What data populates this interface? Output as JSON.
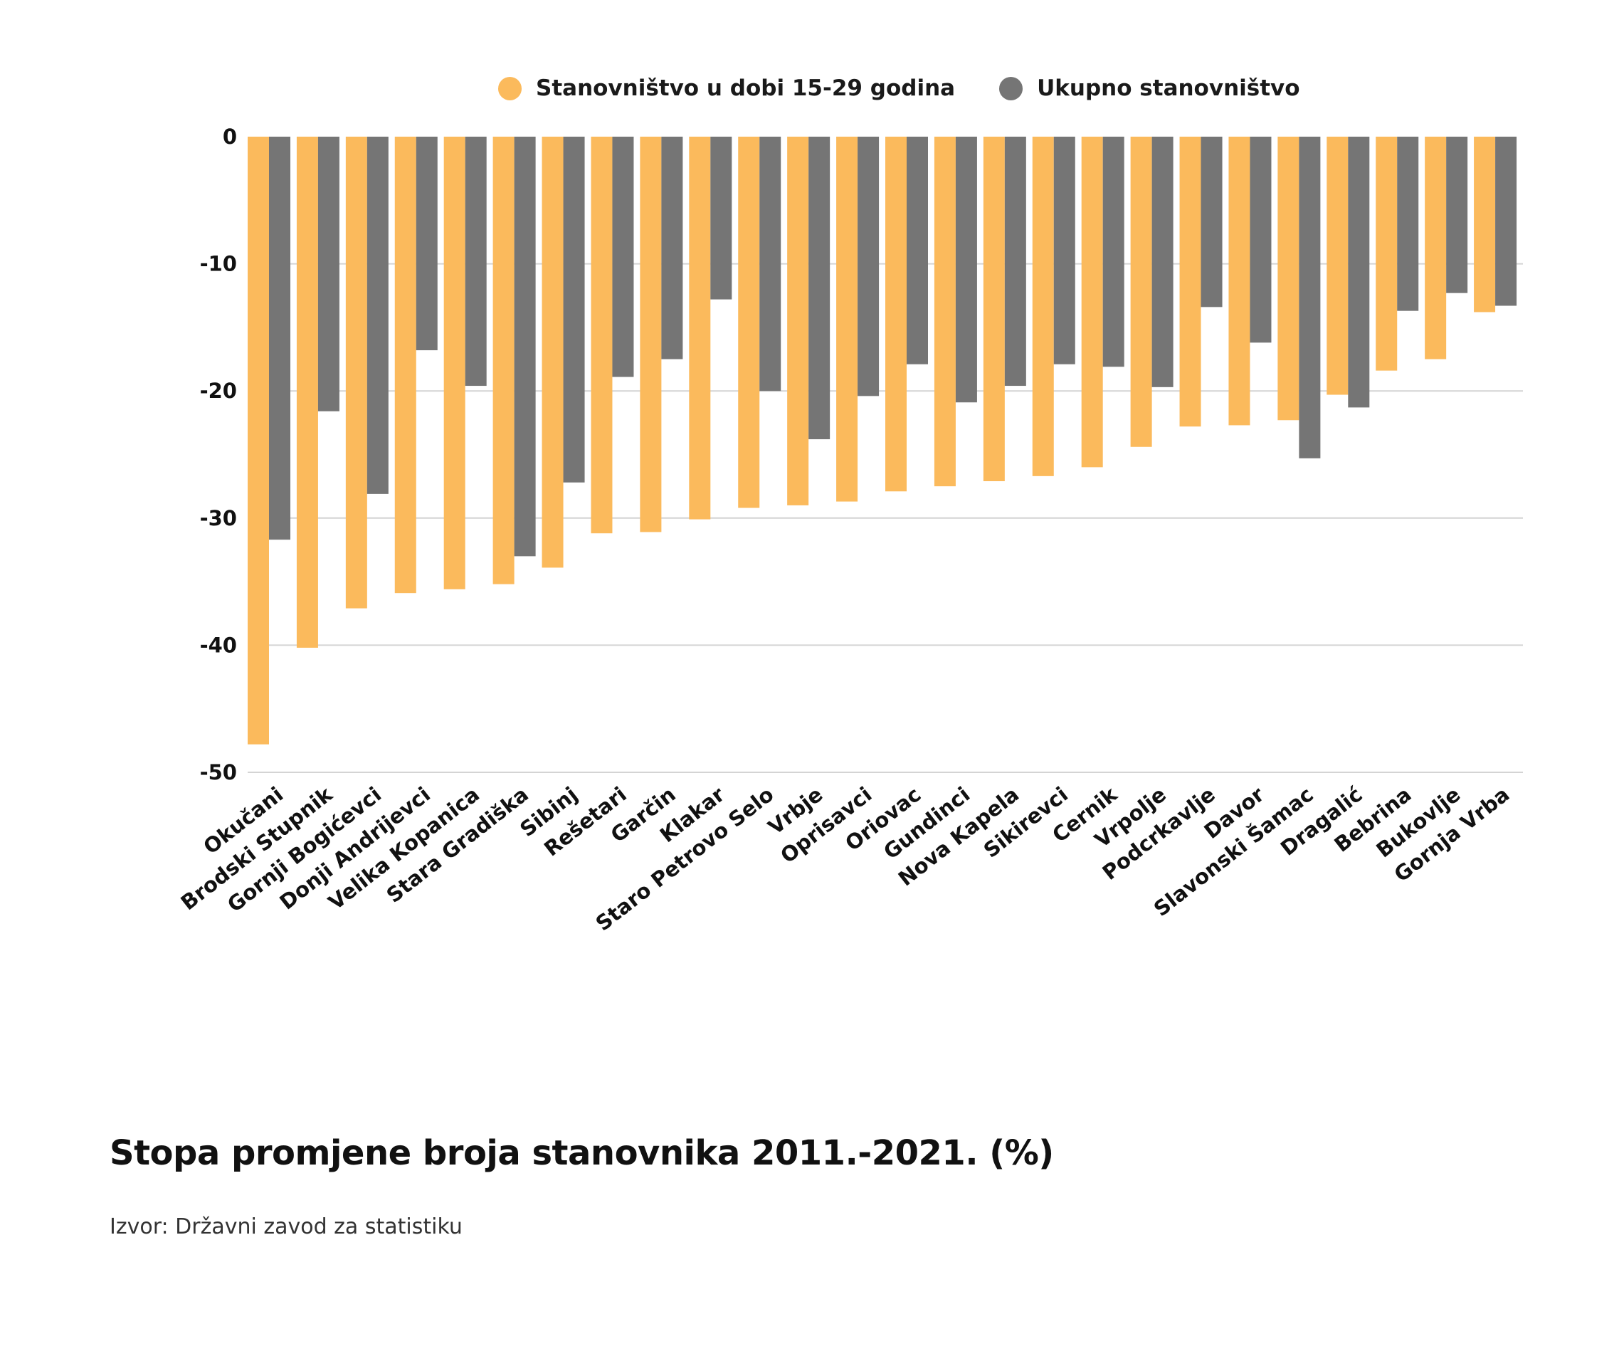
{
  "chart_data": {
    "type": "bar",
    "title": "Stopa promjene broja stanovnika 2011.-2021. (%)",
    "source": "Izvor: Državni zavod za statistiku",
    "ylim": [
      -50,
      0
    ],
    "yticks": [
      0,
      -10,
      -20,
      -30,
      -40,
      -50
    ],
    "grid": true,
    "legend_position": "top-center",
    "categories": [
      "Okučani",
      "Brodski Stupnik",
      "Gornji Bogićevci",
      "Donji Andrijevci",
      "Velika Kopanica",
      "Stara Gradiška",
      "Sibinj",
      "Rešetari",
      "Garčin",
      "Klakar",
      "Staro Petrovo Selo",
      "Vrbje",
      "Oprisavci",
      "Oriovac",
      "Gundinci",
      "Nova Kapela",
      "Sikirevci",
      "Cernik",
      "Vrpolje",
      "Podcrkavlje",
      "Davor",
      "Slavonski Šamac",
      "Dragalić",
      "Bebrina",
      "Bukovlje",
      "Gornja Vrba"
    ],
    "series": [
      {
        "name": "Stanovništvo u dobi 15-29 godina",
        "color": "#FBBA5C",
        "values": [
          -47.8,
          -40.2,
          -37.1,
          -35.9,
          -35.6,
          -35.2,
          -33.9,
          -31.2,
          -31.1,
          -30.1,
          -29.2,
          -29.0,
          -28.7,
          -27.9,
          -27.5,
          -27.1,
          -26.7,
          -26.0,
          -24.4,
          -22.8,
          -22.7,
          -22.3,
          -20.3,
          -18.4,
          -17.5,
          -13.8
        ]
      },
      {
        "name": "Ukupno stanovništvo",
        "color": "#757575",
        "values": [
          -31.7,
          -21.6,
          -28.1,
          -16.8,
          -19.6,
          -33.0,
          -27.2,
          -18.9,
          -17.5,
          -12.8,
          -20.0,
          -23.8,
          -20.4,
          -17.9,
          -20.9,
          -19.6,
          -17.9,
          -18.1,
          -19.7,
          -13.4,
          -16.2,
          -25.3,
          -21.3,
          -13.7,
          -12.3,
          -13.3
        ]
      }
    ]
  }
}
